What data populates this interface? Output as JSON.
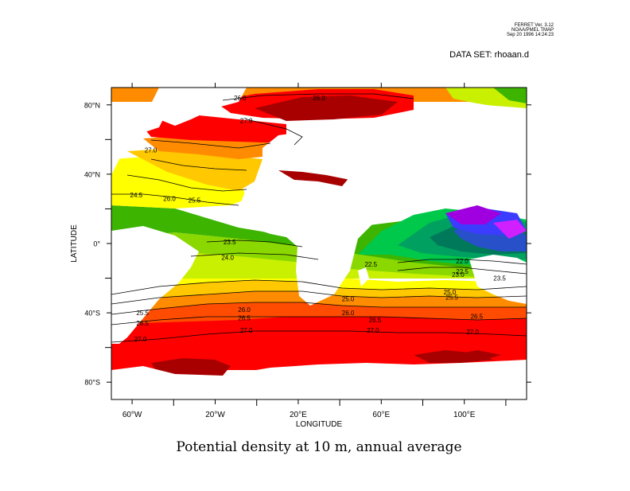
{
  "header": {
    "ferret_line1": "FERRET Ver. 3.12",
    "ferret_line2": "NOAA/PMEL TMAP",
    "ferret_line3": "Sep 20 1996 14:24:23",
    "dataset": "DATA SET: rhoaan.d"
  },
  "chart_data": {
    "type": "contour",
    "title": "Potential density at 10 m, annual average",
    "xlabel": "LONGITUDE",
    "ylabel": "LATITUDE",
    "xlim": [
      -70,
      130
    ],
    "ylim": [
      -90,
      90
    ],
    "x_ticks": [
      {
        "value": -60,
        "label": "60°W"
      },
      {
        "value": -20,
        "label": "20°W"
      },
      {
        "value": 20,
        "label": "20°E"
      },
      {
        "value": 60,
        "label": "60°E"
      },
      {
        "value": 100,
        "label": "100°E"
      }
    ],
    "x_minor_ticks": [
      -40,
      0,
      40,
      80,
      120
    ],
    "y_ticks": [
      {
        "value": 80,
        "label": "80°N"
      },
      {
        "value": 40,
        "label": "40°N"
      },
      {
        "value": 0,
        "label": "0°"
      },
      {
        "value": -40,
        "label": "40°S"
      },
      {
        "value": -80,
        "label": "80°S"
      }
    ],
    "y_minor_ticks": [
      60,
      20,
      -20,
      -60
    ],
    "contour_labels": [
      {
        "text": "26.0",
        "lon": -8,
        "lat": 84
      },
      {
        "text": "26.0",
        "lon": 30,
        "lat": 84
      },
      {
        "text": "27.0",
        "lon": -5,
        "lat": 71
      },
      {
        "text": "27.0",
        "lon": -51,
        "lat": 54
      },
      {
        "text": "24.5",
        "lon": -58,
        "lat": 28
      },
      {
        "text": "26.0",
        "lon": -42,
        "lat": 26
      },
      {
        "text": "25.5",
        "lon": -30,
        "lat": 25
      },
      {
        "text": "23.5",
        "lon": -13,
        "lat": 1
      },
      {
        "text": "24.0",
        "lon": -14,
        "lat": -8
      },
      {
        "text": "22.5",
        "lon": 55,
        "lat": -12
      },
      {
        "text": "22.0",
        "lon": 99,
        "lat": -10
      },
      {
        "text": "22.5",
        "lon": 99,
        "lat": -16
      },
      {
        "text": "23.0",
        "lon": 97,
        "lat": -18
      },
      {
        "text": "23.5",
        "lon": 117,
        "lat": -20
      },
      {
        "text": "25.0",
        "lon": 44,
        "lat": -32
      },
      {
        "text": "25.0",
        "lon": 93,
        "lat": -28
      },
      {
        "text": "25.5",
        "lon": 94,
        "lat": -31
      },
      {
        "text": "26.0",
        "lon": -6,
        "lat": -38
      },
      {
        "text": "26.5",
        "lon": -6,
        "lat": -43
      },
      {
        "text": "26.0",
        "lon": 44,
        "lat": -40
      },
      {
        "text": "26.5",
        "lon": 57,
        "lat": -44
      },
      {
        "text": "26.5",
        "lon": 106,
        "lat": -42
      },
      {
        "text": "25.5",
        "lon": -55,
        "lat": -40
      },
      {
        "text": "26.5",
        "lon": -55,
        "lat": -46
      },
      {
        "text": "27.0",
        "lon": -5,
        "lat": -50
      },
      {
        "text": "27.0",
        "lon": 56,
        "lat": -50
      },
      {
        "text": "27.0",
        "lon": 104,
        "lat": -51
      },
      {
        "text": "27.0",
        "lon": -56,
        "lat": -55
      }
    ],
    "colors": {
      "dark_red": "#a80000",
      "red": "#ff0000",
      "orange_red": "#ff4c00",
      "orange": "#ff8c00",
      "yellow_orange": "#ffc800",
      "yellow": "#ffff00",
      "yellow_green": "#c8f000",
      "light_green": "#8ad800",
      "green": "#3cb400",
      "bright_green": "#00c84a",
      "teal": "#00a060",
      "dark_teal": "#00785a",
      "blue": "#2850c8",
      "bright_blue": "#3c3cff",
      "purple": "#a000e0",
      "magenta": "#d020ff"
    }
  }
}
